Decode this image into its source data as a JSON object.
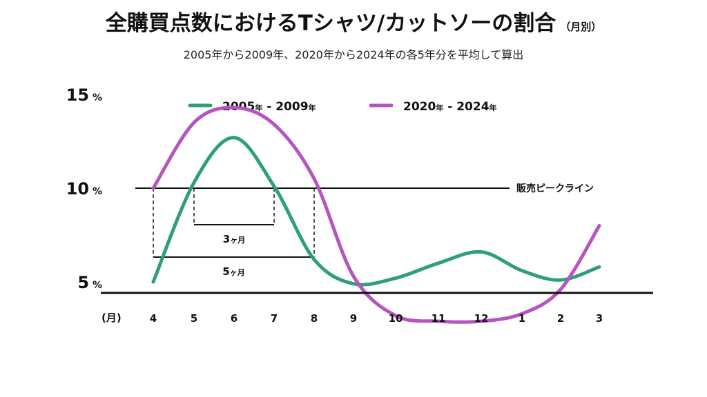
{
  "header": {
    "title": "全購買点数におけるTシャツ/カットソーの割合",
    "title_suffix": "（月別）",
    "subtitle": "2005年から2009年、2020年から2024年の各5年分を平均して算出"
  },
  "chart_data": {
    "type": "line",
    "categories": [
      "4",
      "5",
      "6",
      "7",
      "8",
      "9",
      "10",
      "11",
      "12",
      "1",
      "2",
      "3"
    ],
    "x_unit_label": "(月)",
    "series": [
      {
        "name": "2005年 - 2009年",
        "color": "#2e9e7c",
        "values": [
          5.0,
          10.3,
          12.7,
          10.1,
          6.2,
          4.9,
          5.2,
          6.0,
          6.6,
          5.6,
          5.1,
          5.8
        ]
      },
      {
        "name": "2020年 - 2024年",
        "color": "#b654c0",
        "values": [
          10.0,
          13.5,
          14.3,
          13.4,
          10.5,
          5.3,
          3.2,
          2.9,
          2.9,
          3.3,
          4.6,
          8.0
        ]
      }
    ],
    "y_ticks": [
      {
        "value": 15,
        "num": "15",
        "unit": "%"
      },
      {
        "value": 10,
        "num": "10",
        "unit": "%"
      },
      {
        "value": 5,
        "num": "5",
        "unit": "%"
      }
    ],
    "ylim": [
      0,
      16
    ],
    "reference_line": {
      "value": 10,
      "label": "販売ピークライン"
    },
    "annotations": [
      {
        "num": "3",
        "unit": "ヶ月",
        "from": "5",
        "to": "7"
      },
      {
        "num": "5",
        "unit": "ヶ月",
        "from": "4",
        "to": "8"
      }
    ],
    "legend_position": "top-center",
    "grid": false
  }
}
